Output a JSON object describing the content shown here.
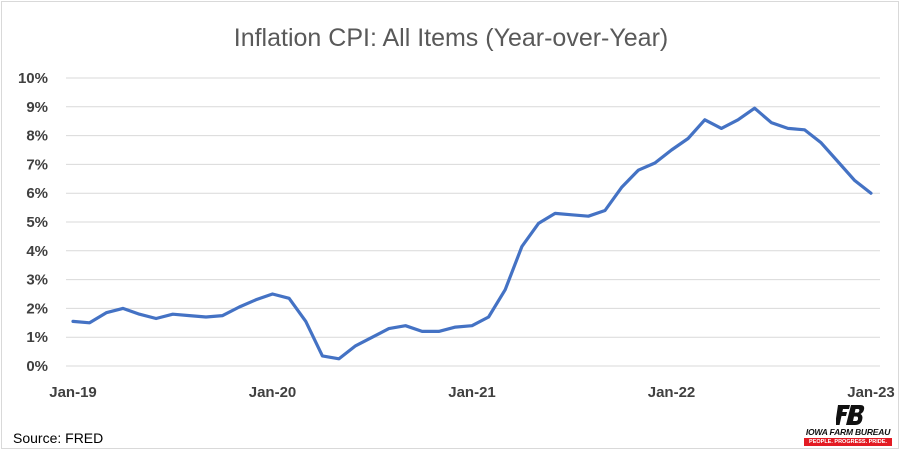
{
  "chart_data": {
    "type": "line",
    "title": "Inflation CPI: All Items (Year-over-Year)",
    "xlabel": "",
    "ylabel": "",
    "ylim": [
      0,
      10
    ],
    "y_tick_labels": [
      "0%",
      "1%",
      "2%",
      "3%",
      "4%",
      "5%",
      "6%",
      "7%",
      "8%",
      "9%",
      "10%"
    ],
    "x_tick_labels": [
      "Jan-19",
      "Jan-20",
      "Jan-21",
      "Jan-22",
      "Jan-23"
    ],
    "grid": true,
    "legend": "none",
    "series": [
      {
        "color": "#4472c4",
        "x": [
          "2019-01",
          "2019-02",
          "2019-03",
          "2019-04",
          "2019-05",
          "2019-06",
          "2019-07",
          "2019-08",
          "2019-09",
          "2019-10",
          "2019-11",
          "2019-12",
          "2020-01",
          "2020-02",
          "2020-03",
          "2020-04",
          "2020-05",
          "2020-06",
          "2020-07",
          "2020-08",
          "2020-09",
          "2020-10",
          "2020-11",
          "2020-12",
          "2021-01",
          "2021-02",
          "2021-03",
          "2021-04",
          "2021-05",
          "2021-06",
          "2021-07",
          "2021-08",
          "2021-09",
          "2021-10",
          "2021-11",
          "2021-12",
          "2022-01",
          "2022-02",
          "2022-03",
          "2022-04",
          "2022-05",
          "2022-06",
          "2022-07",
          "2022-08",
          "2022-09",
          "2022-10",
          "2022-11",
          "2022-12",
          "2023-01"
        ],
        "values": [
          1.55,
          1.5,
          1.85,
          2.0,
          1.8,
          1.65,
          1.8,
          1.75,
          1.7,
          1.75,
          2.05,
          2.3,
          2.5,
          2.35,
          1.55,
          0.35,
          0.25,
          0.7,
          1.0,
          1.3,
          1.4,
          1.2,
          1.2,
          1.35,
          1.4,
          1.7,
          2.65,
          4.15,
          4.95,
          5.3,
          5.25,
          5.2,
          5.4,
          6.2,
          6.8,
          7.05,
          7.5,
          7.9,
          8.55,
          8.25,
          8.55,
          8.95,
          8.45,
          8.25,
          8.2,
          7.75,
          7.1,
          6.45,
          6.0
        ]
      }
    ]
  },
  "footer": {
    "source": "Source: FRED"
  },
  "logo": {
    "name": "IOWA FARM BUREAU",
    "tagline": "PEOPLE. PROGRESS. PRIDE."
  }
}
